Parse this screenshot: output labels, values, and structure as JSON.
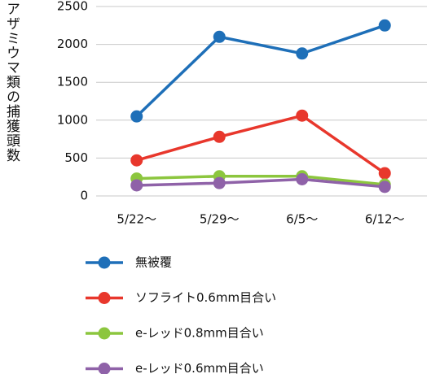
{
  "chart_data": {
    "type": "line",
    "y_label": "アザミウマ類の捕獲頭数",
    "categories": [
      "5/22〜",
      "5/29〜",
      "6/5〜",
      "6/12〜"
    ],
    "series": [
      {
        "name": "無被覆",
        "color": "#1e6fb8",
        "values": [
          1050,
          2100,
          1880,
          2250
        ]
      },
      {
        "name": "ソフライト0.6mm目合い",
        "color": "#e8372c",
        "values": [
          470,
          780,
          1060,
          300
        ]
      },
      {
        "name": "e-レッド0.8mm目合い",
        "color": "#8cc63e",
        "values": [
          230,
          260,
          260,
          150
        ]
      },
      {
        "name": "e-レッド0.6mm目合い",
        "color": "#8f62a8",
        "values": [
          140,
          170,
          220,
          120
        ]
      }
    ],
    "ylim": [
      0,
      2500
    ],
    "yticks": [
      0,
      500,
      1000,
      1500,
      2000,
      2500
    ],
    "grid": true
  }
}
